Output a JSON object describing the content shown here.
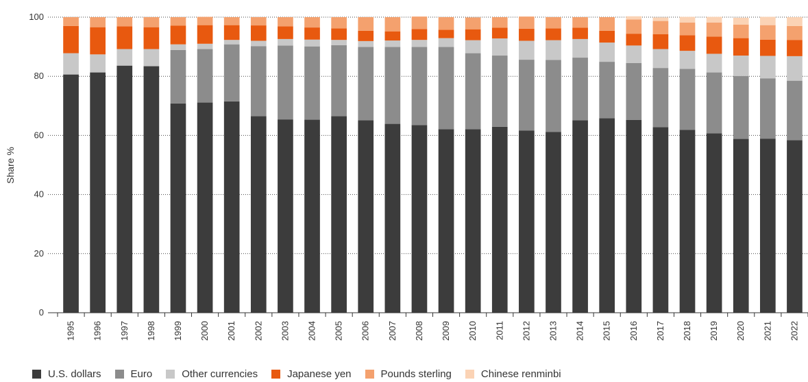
{
  "chart_data": {
    "type": "bar",
    "stacked": true,
    "ylabel": "Share %",
    "xlabel": "",
    "ylim": [
      0,
      100
    ],
    "yticks": [
      0,
      20,
      40,
      60,
      80,
      100
    ],
    "grid": "horizontal dotted",
    "legend_position": "bottom",
    "categories": [
      "1995",
      "1996",
      "1997",
      "1998",
      "1999",
      "2000",
      "2001",
      "2002",
      "2003",
      "2004",
      "2005",
      "2006",
      "2007",
      "2008",
      "2009",
      "2010",
      "2011",
      "2012",
      "2013",
      "2014",
      "2015",
      "2016",
      "2017",
      "2018",
      "2019",
      "2020",
      "2021",
      "2022"
    ],
    "series": [
      {
        "name": "U.S. dollars",
        "color": "#3c3c3c",
        "values": [
          80.6,
          81.3,
          83.6,
          83.4,
          70.8,
          71.1,
          71.5,
          66.5,
          65.4,
          65.3,
          66.5,
          65.1,
          63.9,
          63.5,
          62.1,
          62.1,
          62.9,
          61.6,
          61.2,
          65.1,
          65.8,
          65.2,
          62.8,
          61.9,
          60.7,
          58.8,
          58.9,
          58.4
        ]
      },
      {
        "name": "Euro",
        "color": "#8c8c8c",
        "values": [
          0,
          0,
          0,
          0,
          18.1,
          18.1,
          19.3,
          23.7,
          25.0,
          24.8,
          24.0,
          24.8,
          26.0,
          26.4,
          27.8,
          25.7,
          24.1,
          24.0,
          24.3,
          21.2,
          19.1,
          19.3,
          20.0,
          20.6,
          20.6,
          21.3,
          20.4,
          20.1
        ]
      },
      {
        "name": "Other currencies",
        "color": "#c8c8c8",
        "values": [
          7.2,
          6.1,
          5.6,
          5.8,
          1.9,
          1.8,
          1.5,
          1.8,
          2.2,
          2.3,
          1.8,
          2.0,
          2.2,
          2.4,
          3.0,
          4.4,
          5.8,
          6.4,
          6.7,
          6.3,
          6.5,
          5.9,
          6.4,
          6.1,
          6.3,
          6.9,
          7.6,
          8.3
        ]
      },
      {
        "name": "Japanese yen",
        "color": "#e8590f",
        "values": [
          9.2,
          9.2,
          7.7,
          7.4,
          6.3,
          6.3,
          5.0,
          5.2,
          4.3,
          4.1,
          3.9,
          3.5,
          3.1,
          3.7,
          2.8,
          3.7,
          3.6,
          4.1,
          4.0,
          3.8,
          4.0,
          4.0,
          5.0,
          5.3,
          5.8,
          5.9,
          5.5,
          5.5
        ]
      },
      {
        "name": "Pounds sterling",
        "color": "#f4a16e",
        "values": [
          3.0,
          3.4,
          3.1,
          3.4,
          2.9,
          2.8,
          2.7,
          2.8,
          3.1,
          3.5,
          3.8,
          4.6,
          4.8,
          4.2,
          4.3,
          4.0,
          3.6,
          4.1,
          3.8,
          3.6,
          4.6,
          4.8,
          4.5,
          4.3,
          4.8,
          4.6,
          4.9,
          4.7
        ]
      },
      {
        "name": "Chinese renminbi",
        "color": "#fbd3b5",
        "values": [
          0,
          0,
          0,
          0,
          0,
          0,
          0,
          0,
          0,
          0,
          0,
          0,
          0,
          0,
          0,
          0,
          0,
          0,
          0,
          0,
          0,
          1.1,
          1.2,
          1.9,
          1.9,
          2.3,
          2.8,
          3.0
        ]
      }
    ]
  }
}
